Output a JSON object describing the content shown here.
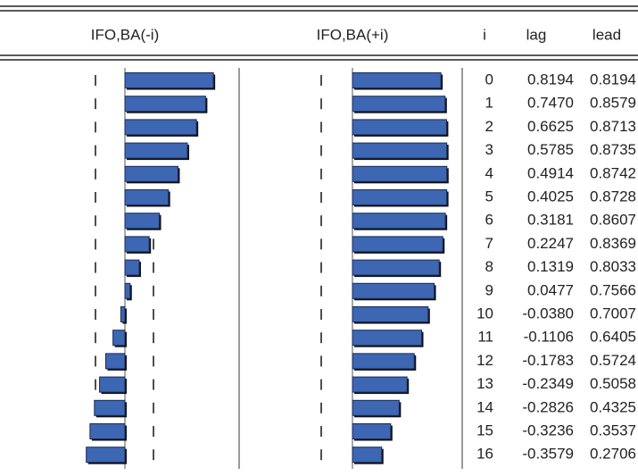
{
  "header": {
    "left": "IFO,BA(-i)",
    "right": "IFO,BA(+i)",
    "i": "i",
    "lag": "lag",
    "lead": "lead"
  },
  "rows": [
    {
      "i": "0",
      "lag": "0.8194",
      "lead": "0.8194"
    },
    {
      "i": "1",
      "lag": "0.7470",
      "lead": "0.8579"
    },
    {
      "i": "2",
      "lag": "0.6625",
      "lead": "0.8713"
    },
    {
      "i": "3",
      "lag": "0.5785",
      "lead": "0.8735"
    },
    {
      "i": "4",
      "lag": "0.4914",
      "lead": "0.8742"
    },
    {
      "i": "5",
      "lag": "0.4025",
      "lead": "0.8728"
    },
    {
      "i": "6",
      "lag": "0.3181",
      "lead": "0.8607"
    },
    {
      "i": "7",
      "lag": "0.2247",
      "lead": "0.8369"
    },
    {
      "i": "8",
      "lag": "0.1319",
      "lead": "0.8033"
    },
    {
      "i": "9",
      "lag": "0.0477",
      "lead": "0.7566"
    },
    {
      "i": "10",
      "lag": "-0.0380",
      "lead": "0.7007"
    },
    {
      "i": "11",
      "lag": "-0.1106",
      "lead": "0.6405"
    },
    {
      "i": "12",
      "lag": "-0.1783",
      "lead": "0.5724"
    },
    {
      "i": "13",
      "lag": "-0.2349",
      "lead": "0.5058"
    },
    {
      "i": "14",
      "lag": "-0.2826",
      "lead": "0.4325"
    },
    {
      "i": "15",
      "lag": "-0.3236",
      "lead": "0.3537"
    },
    {
      "i": "16",
      "lag": "-0.3579",
      "lead": "0.2706"
    }
  ]
}
